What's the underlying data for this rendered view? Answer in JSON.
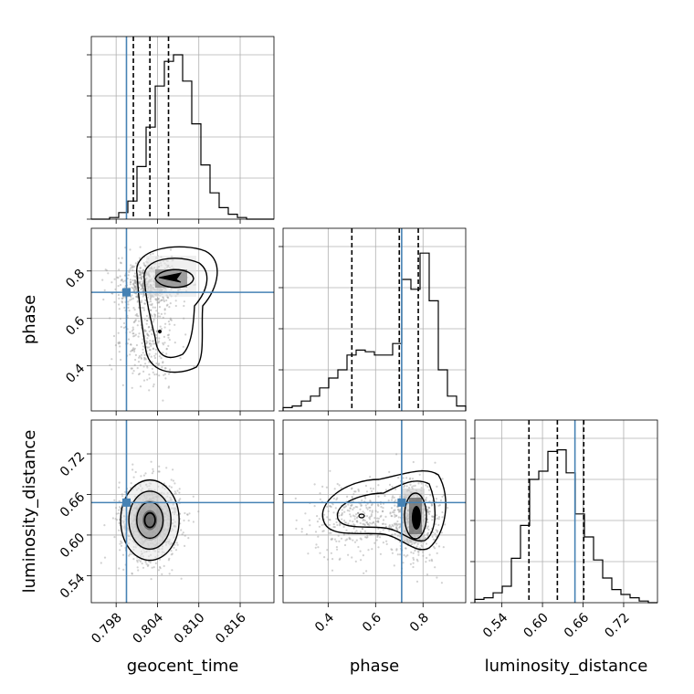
{
  "chart_data": {
    "type": "corner",
    "parameters": [
      "geocent_time",
      "phase",
      "luminosity_distance"
    ],
    "truths": {
      "geocent_time": 0.7995,
      "phase": 0.71,
      "luminosity_distance": 0.648
    },
    "truth_color": "#4682b4",
    "quantiles": {
      "geocent_time": [
        0.8005,
        0.8029,
        0.8056
      ],
      "phase": [
        0.5,
        0.7,
        0.78
      ],
      "luminosity_distance": [
        0.58,
        0.622,
        0.661
      ]
    },
    "ranges": {
      "geocent_time": [
        0.7944,
        0.8209
      ],
      "phase": [
        0.21,
        0.98
      ],
      "luminosity_distance": [
        0.5,
        0.77
      ]
    },
    "ticks": {
      "geocent_time": [
        0.798,
        0.804,
        0.81,
        0.816
      ],
      "phase": [
        0.4,
        0.6,
        0.8
      ],
      "luminosity_distance": [
        0.54,
        0.6,
        0.66,
        0.72
      ]
    },
    "tick_labels": {
      "geocent_time": [
        "0.798",
        "0.804",
        "0.810",
        "0.816"
      ],
      "phase": [
        "0.4",
        "0.6",
        "0.8"
      ],
      "luminosity_distance": [
        "0.54",
        "0.60",
        "0.66",
        "0.72"
      ]
    },
    "histograms": {
      "geocent_time": [
        0,
        0,
        0.01,
        0.04,
        0.11,
        0.32,
        0.56,
        0.81,
        0.96,
        1.0,
        0.84,
        0.58,
        0.33,
        0.16,
        0.07,
        0.03,
        0.01,
        0,
        0,
        0
      ],
      "phase": [
        0.02,
        0.03,
        0.06,
        0.09,
        0.14,
        0.2,
        0.25,
        0.34,
        0.37,
        0.36,
        0.34,
        0.34,
        0.41,
        0.8,
        0.74,
        0.96,
        0.67,
        0.25,
        0.09,
        0.03
      ],
      "luminosity_distance": [
        0.02,
        0.03,
        0.06,
        0.1,
        0.27,
        0.47,
        0.75,
        0.8,
        0.92,
        0.93,
        0.79,
        0.54,
        0.4,
        0.26,
        0.15,
        0.08,
        0.05,
        0.03,
        0.01,
        0
      ]
    },
    "grid": true
  }
}
